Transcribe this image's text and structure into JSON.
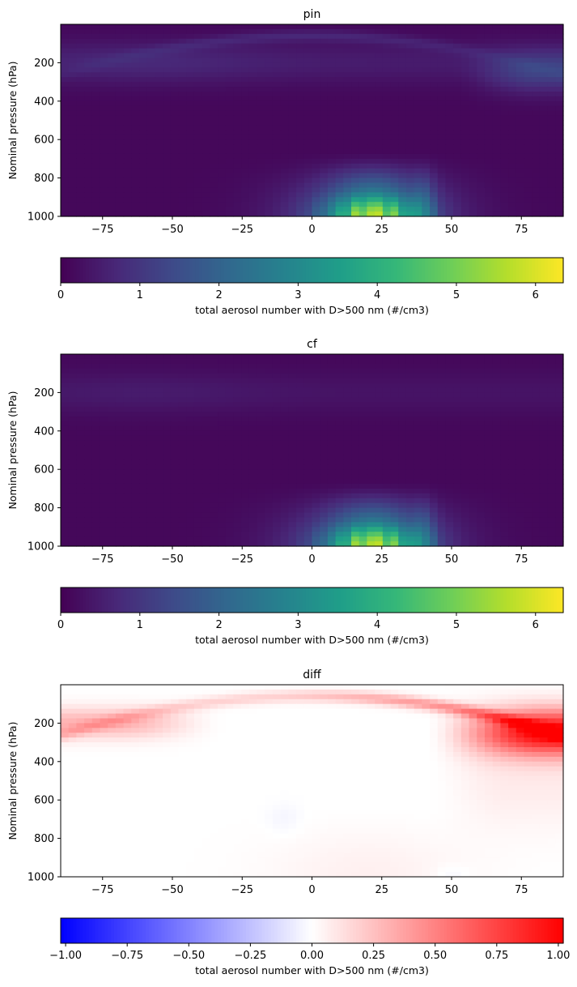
{
  "chart_data": [
    {
      "type": "heatmap",
      "title": "pin",
      "xlabel": "",
      "ylabel": "Nominal pressure (hPa)",
      "xlim": [
        -90,
        90
      ],
      "ylim": [
        1000,
        0
      ],
      "xticks": [
        "−75",
        "−50",
        "−25",
        "0",
        "25",
        "50",
        "75"
      ],
      "xtick_values": [
        -75,
        -50,
        -25,
        0,
        25,
        50,
        75
      ],
      "yticks": [
        "200",
        "400",
        "600",
        "800",
        "1000"
      ],
      "ytick_values": [
        200,
        400,
        600,
        800,
        1000
      ],
      "colormap": "viridis",
      "colorbar": {
        "label": "total aerosol number with D>500 nm (#/cm3)",
        "range": [
          0,
          6.35
        ],
        "ticks": [
          "0",
          "1",
          "2",
          "3",
          "4",
          "5",
          "6"
        ],
        "tick_values": [
          0,
          1,
          2,
          3,
          4,
          5,
          6
        ]
      },
      "features": {
        "surface_plume": {
          "lat_center": 22,
          "lat_width": 16,
          "p_top": 650,
          "peak": 6.2
        },
        "upper_band": {
          "p_center": 200,
          "value": 0.6
        },
        "arctic_upper": {
          "lat_start": 50,
          "p_center": 250,
          "value": 0.9
        },
        "tropopause_arc": {
          "value": 0.5
        }
      }
    },
    {
      "type": "heatmap",
      "title": "cf",
      "xlabel": "",
      "ylabel": "Nominal pressure (hPa)",
      "xlim": [
        -90,
        90
      ],
      "ylim": [
        1000,
        0
      ],
      "xticks": [
        "−75",
        "−50",
        "−25",
        "0",
        "25",
        "50",
        "75"
      ],
      "xtick_values": [
        -75,
        -50,
        -25,
        0,
        25,
        50,
        75
      ],
      "yticks": [
        "200",
        "400",
        "600",
        "800",
        "1000"
      ],
      "ytick_values": [
        200,
        400,
        600,
        800,
        1000
      ],
      "colormap": "viridis",
      "colorbar": {
        "label": "total aerosol number with D>500 nm (#/cm3)",
        "range": [
          0,
          6.35
        ],
        "ticks": [
          "0",
          "1",
          "2",
          "3",
          "4",
          "5",
          "6"
        ],
        "tick_values": [
          0,
          1,
          2,
          3,
          4,
          5,
          6
        ]
      },
      "features": {
        "surface_plume": {
          "lat_center": 22,
          "lat_width": 16,
          "p_top": 650,
          "peak": 6.2
        },
        "upper_band": {
          "p_center": 200,
          "value": 0.35
        }
      }
    },
    {
      "type": "heatmap",
      "title": "diff",
      "xlabel": "",
      "ylabel": "Nominal pressure (hPa)",
      "xlim": [
        -90,
        90
      ],
      "ylim": [
        1000,
        0
      ],
      "xticks": [
        "−75",
        "−50",
        "−25",
        "0",
        "25",
        "50",
        "75"
      ],
      "xtick_values": [
        -75,
        -50,
        -25,
        0,
        25,
        50,
        75
      ],
      "yticks": [
        "200",
        "400",
        "600",
        "800",
        "1000"
      ],
      "ytick_values": [
        200,
        400,
        600,
        800,
        1000
      ],
      "colormap": "bwr",
      "colorbar": {
        "label": "total aerosol number with D>500 nm (#/cm3)",
        "range": [
          -1.02,
          1.02
        ],
        "ticks": [
          "−1.00",
          "−0.75",
          "−0.50",
          "−0.25",
          "0.00",
          "0.25",
          "0.50",
          "0.75",
          "1.00"
        ],
        "tick_values": [
          -1,
          -0.75,
          -0.5,
          -0.25,
          0,
          0.25,
          0.5,
          0.75,
          1
        ]
      },
      "features": {
        "arctic_upper_max": {
          "lat_start": 55,
          "p_center": 250,
          "value": 1.0
        },
        "southern_upper": {
          "lat_end": -40,
          "p_center": 200,
          "value": 0.3
        },
        "tropopause_arc": {
          "value": 0.45
        }
      }
    }
  ]
}
